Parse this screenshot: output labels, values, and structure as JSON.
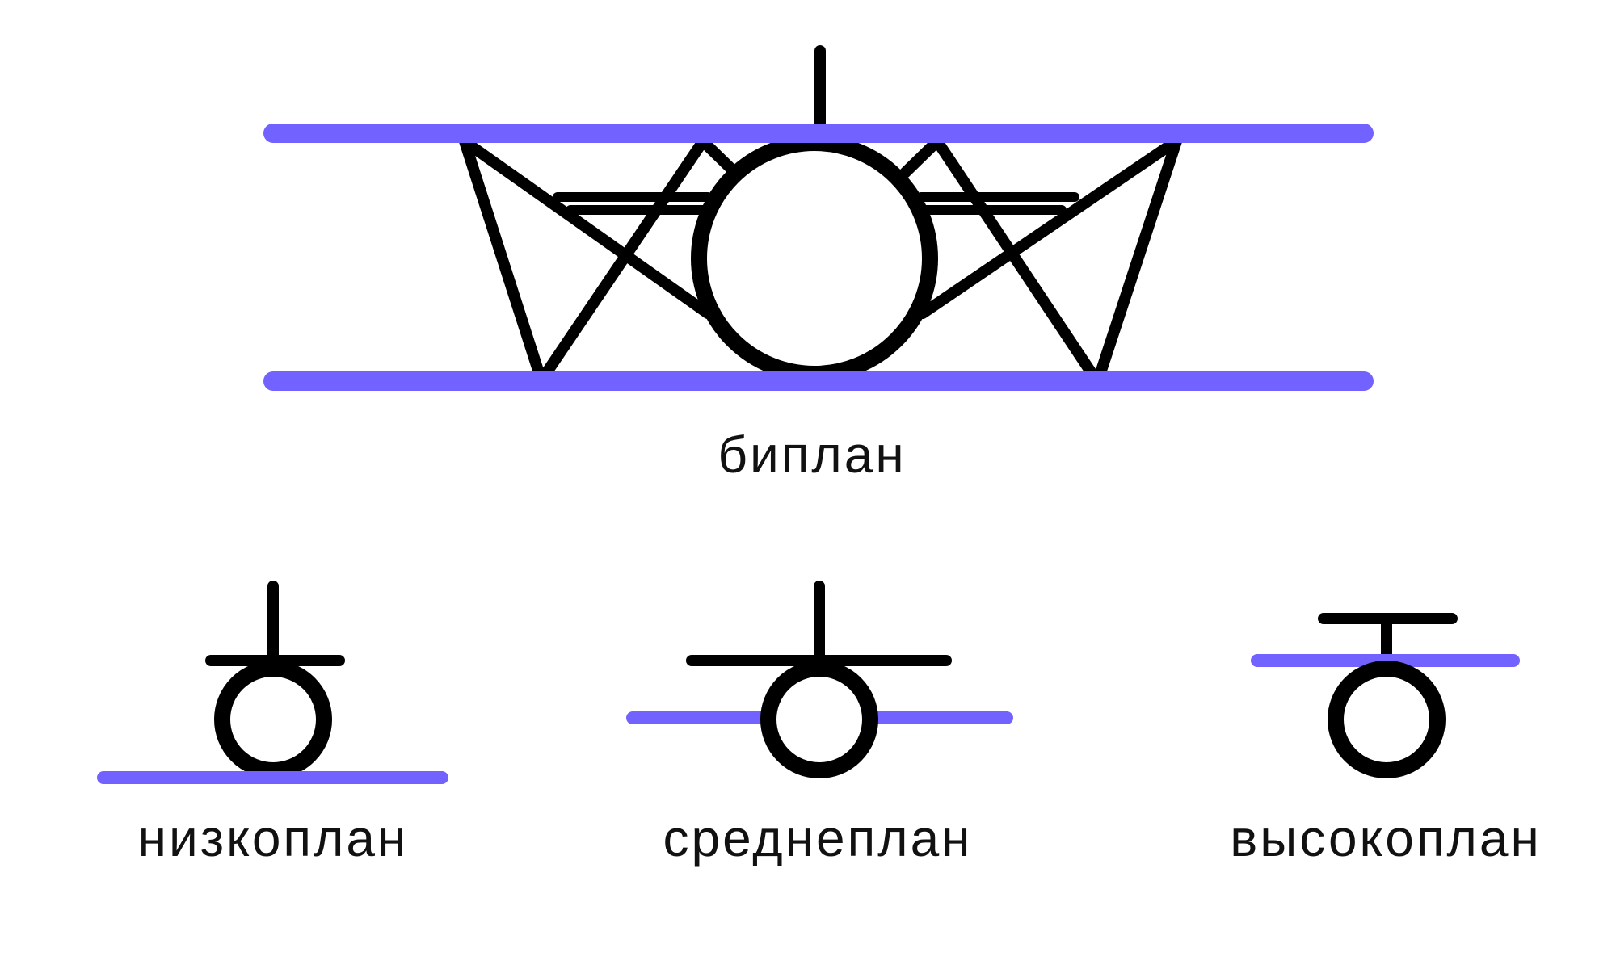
{
  "colors": {
    "wing": "#7262ff",
    "structure": "#000000",
    "background": "#ffffff"
  },
  "labels": {
    "biplane": "биплан",
    "low_wing": "низкоплан",
    "mid_wing": "среднеплан",
    "high_wing": "высокоплан"
  }
}
